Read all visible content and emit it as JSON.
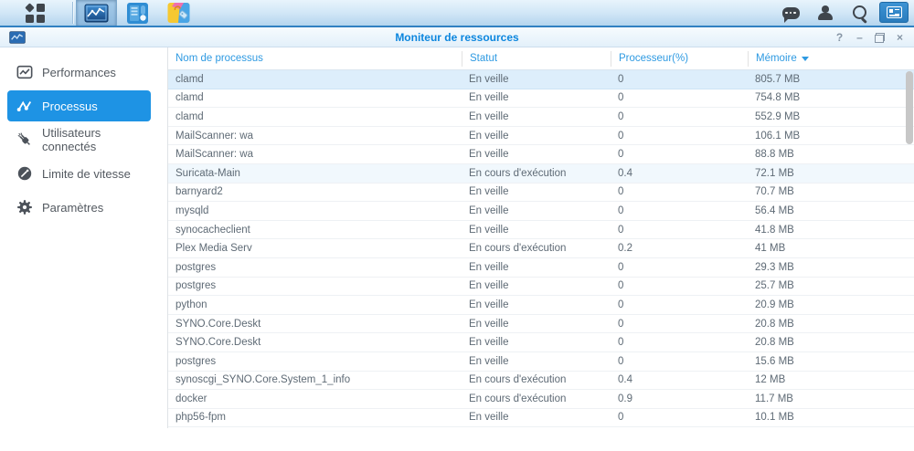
{
  "taskbar": {
    "left_items": [
      "main-menu",
      "resource-monitor",
      "control-panel",
      "package-center"
    ],
    "right_items": [
      "chat",
      "user",
      "search",
      "widgets"
    ]
  },
  "window": {
    "title": "Moniteur de ressources",
    "controls": {
      "help": "?",
      "minimize": "–",
      "close": "×"
    }
  },
  "sidebar": {
    "items": [
      {
        "label": "Performances",
        "icon": "performance-chart",
        "active": false
      },
      {
        "label": "Processus",
        "icon": "process-nodes",
        "active": true
      },
      {
        "label": "Utilisateurs connectés",
        "icon": "plug",
        "active": false
      },
      {
        "label": "Limite de vitesse",
        "icon": "speedometer",
        "active": false
      },
      {
        "label": "Paramètres",
        "icon": "gear",
        "active": false
      }
    ]
  },
  "table": {
    "columns": [
      {
        "label": "Nom de processus"
      },
      {
        "label": "Statut"
      },
      {
        "label": "Processeur(%)"
      },
      {
        "label": "Mémoire",
        "sort": "desc"
      }
    ],
    "rows": [
      {
        "name": "clamd",
        "status": "En veille",
        "cpu": "0",
        "memory": "805.7 MB",
        "state": "selected"
      },
      {
        "name": "clamd",
        "status": "En veille",
        "cpu": "0",
        "memory": "754.8 MB"
      },
      {
        "name": "clamd",
        "status": "En veille",
        "cpu": "0",
        "memory": "552.9 MB"
      },
      {
        "name": "MailScanner: wa",
        "status": "En veille",
        "cpu": "0",
        "memory": "106.1 MB"
      },
      {
        "name": "MailScanner: wa",
        "status": "En veille",
        "cpu": "0",
        "memory": "88.8 MB"
      },
      {
        "name": "Suricata-Main",
        "status": "En cours d'exécution",
        "cpu": "0.4",
        "memory": "72.1 MB",
        "state": "highlighted"
      },
      {
        "name": "barnyard2",
        "status": "En veille",
        "cpu": "0",
        "memory": "70.7 MB"
      },
      {
        "name": "mysqld",
        "status": "En veille",
        "cpu": "0",
        "memory": "56.4 MB"
      },
      {
        "name": "synocacheclient",
        "status": "En veille",
        "cpu": "0",
        "memory": "41.8 MB"
      },
      {
        "name": "Plex Media Serv",
        "status": "En cours d'exécution",
        "cpu": "0.2",
        "memory": "41 MB"
      },
      {
        "name": "postgres",
        "status": "En veille",
        "cpu": "0",
        "memory": "29.3 MB"
      },
      {
        "name": "postgres",
        "status": "En veille",
        "cpu": "0",
        "memory": "25.7 MB"
      },
      {
        "name": "python",
        "status": "En veille",
        "cpu": "0",
        "memory": "20.9 MB"
      },
      {
        "name": "SYNO.Core.Deskt",
        "status": "En veille",
        "cpu": "0",
        "memory": "20.8 MB"
      },
      {
        "name": "SYNO.Core.Deskt",
        "status": "En veille",
        "cpu": "0",
        "memory": "20.8 MB"
      },
      {
        "name": "postgres",
        "status": "En veille",
        "cpu": "0",
        "memory": "15.6 MB"
      },
      {
        "name": "synoscgi_SYNO.Core.System_1_info",
        "status": "En cours d'exécution",
        "cpu": "0.4",
        "memory": "12 MB"
      },
      {
        "name": "docker",
        "status": "En cours d'exécution",
        "cpu": "0.9",
        "memory": "11.7 MB"
      },
      {
        "name": "php56-fpm",
        "status": "En veille",
        "cpu": "0",
        "memory": "10.1 MB"
      }
    ]
  },
  "colors": {
    "accent": "#1e93e4",
    "taskbar_border": "#3181c2",
    "header_text": "#2e9ae2",
    "selected_row": "#ddeefb",
    "title_text": "#0c86de"
  }
}
